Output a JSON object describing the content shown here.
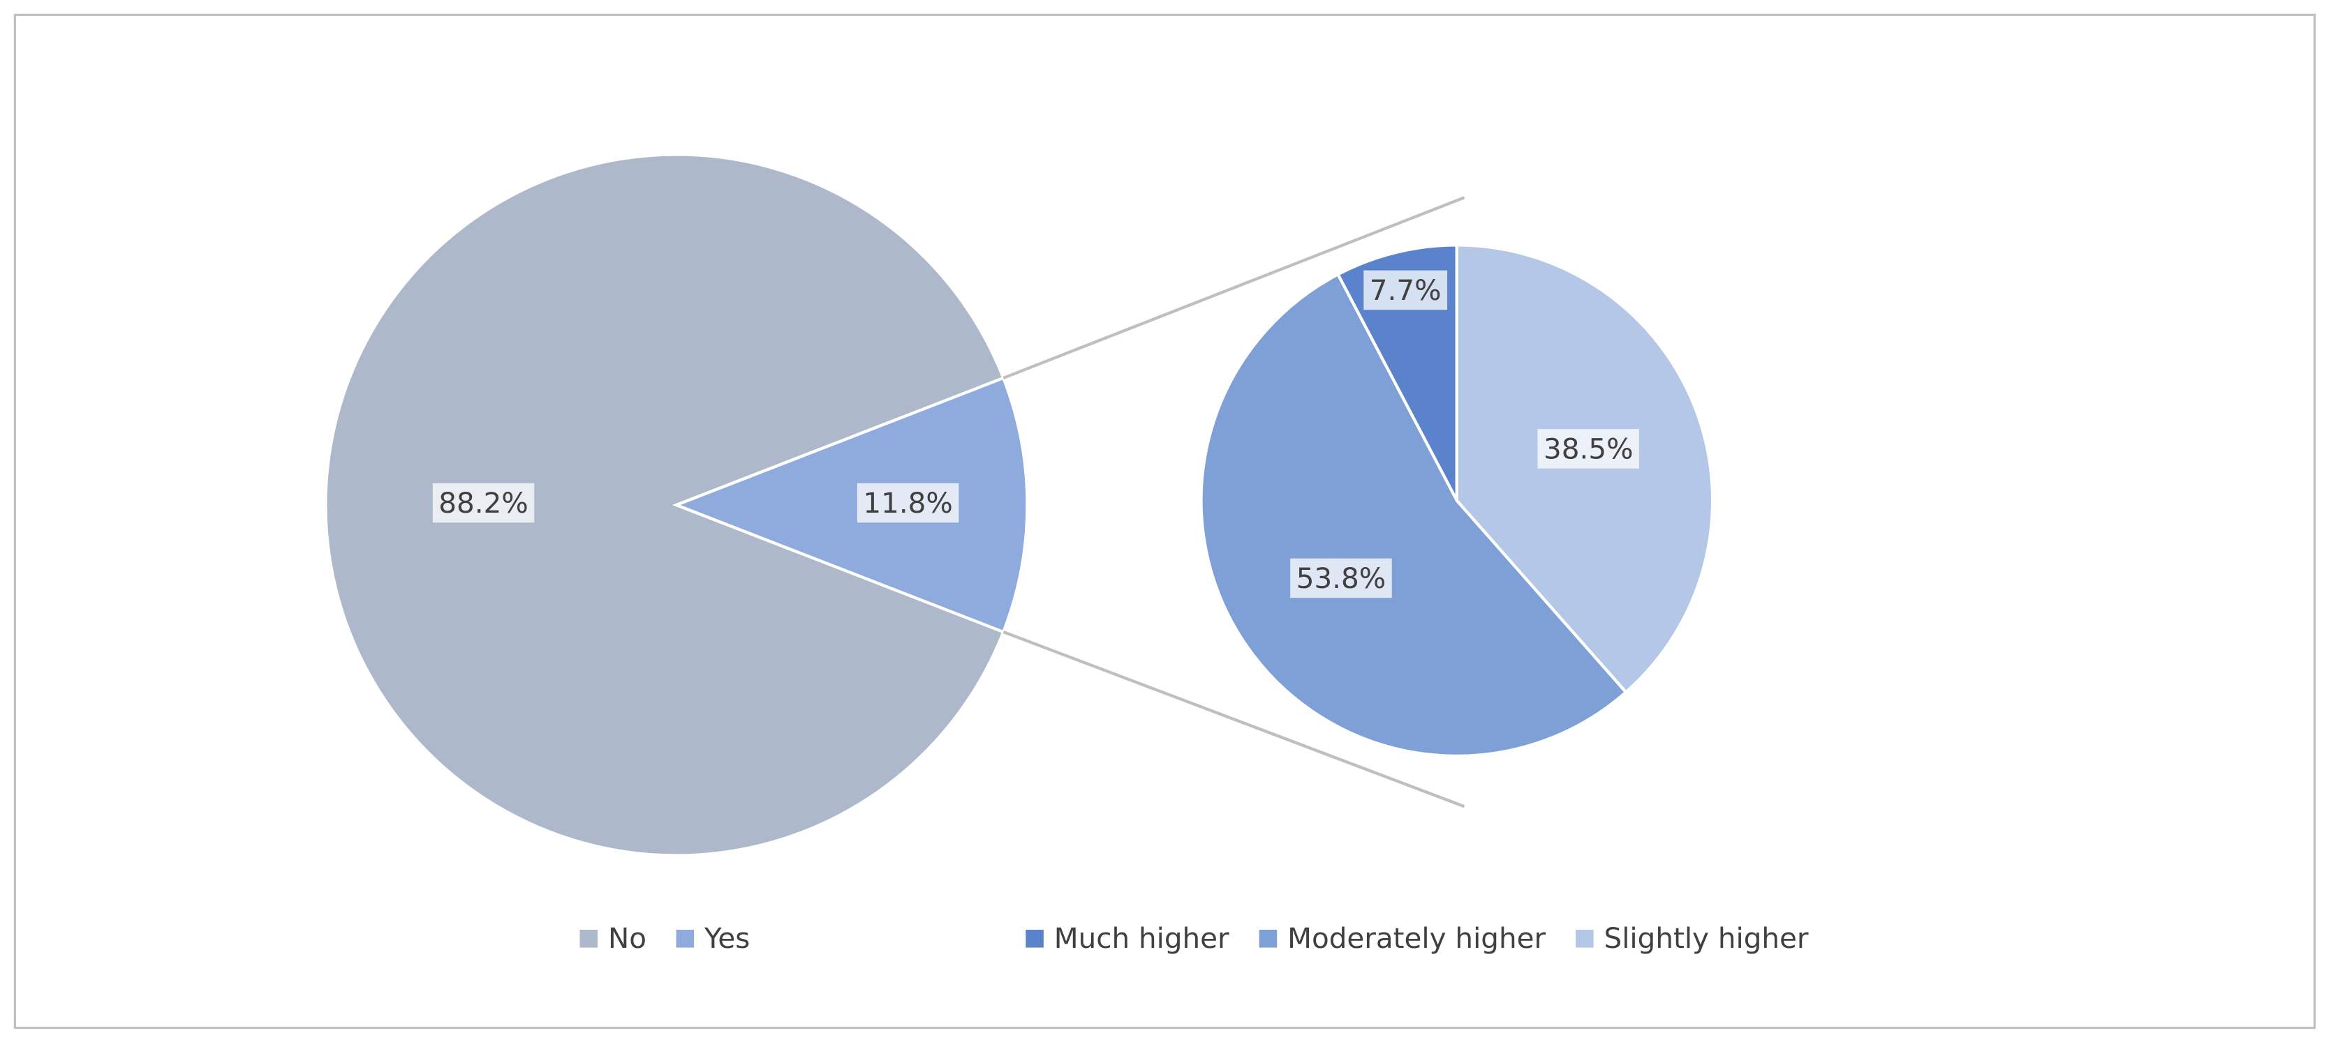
{
  "chart_data": [
    {
      "type": "pie",
      "categories": [
        "No",
        "Yes"
      ],
      "values": [
        88.2,
        11.8
      ],
      "value_labels": [
        "88.2%",
        "11.8%"
      ],
      "colors": [
        "#adb9ca",
        "#8faadc"
      ]
    },
    {
      "type": "pie",
      "categories": [
        "Much higher",
        "Moderately higher",
        "Slightly higher"
      ],
      "values": [
        7.7,
        53.8,
        38.5
      ],
      "value_labels": [
        "7.7%",
        "53.8%",
        "38.5%"
      ],
      "colors": [
        "#5a83cb",
        "#7f9fd7",
        "#b4c7e7"
      ]
    }
  ]
}
